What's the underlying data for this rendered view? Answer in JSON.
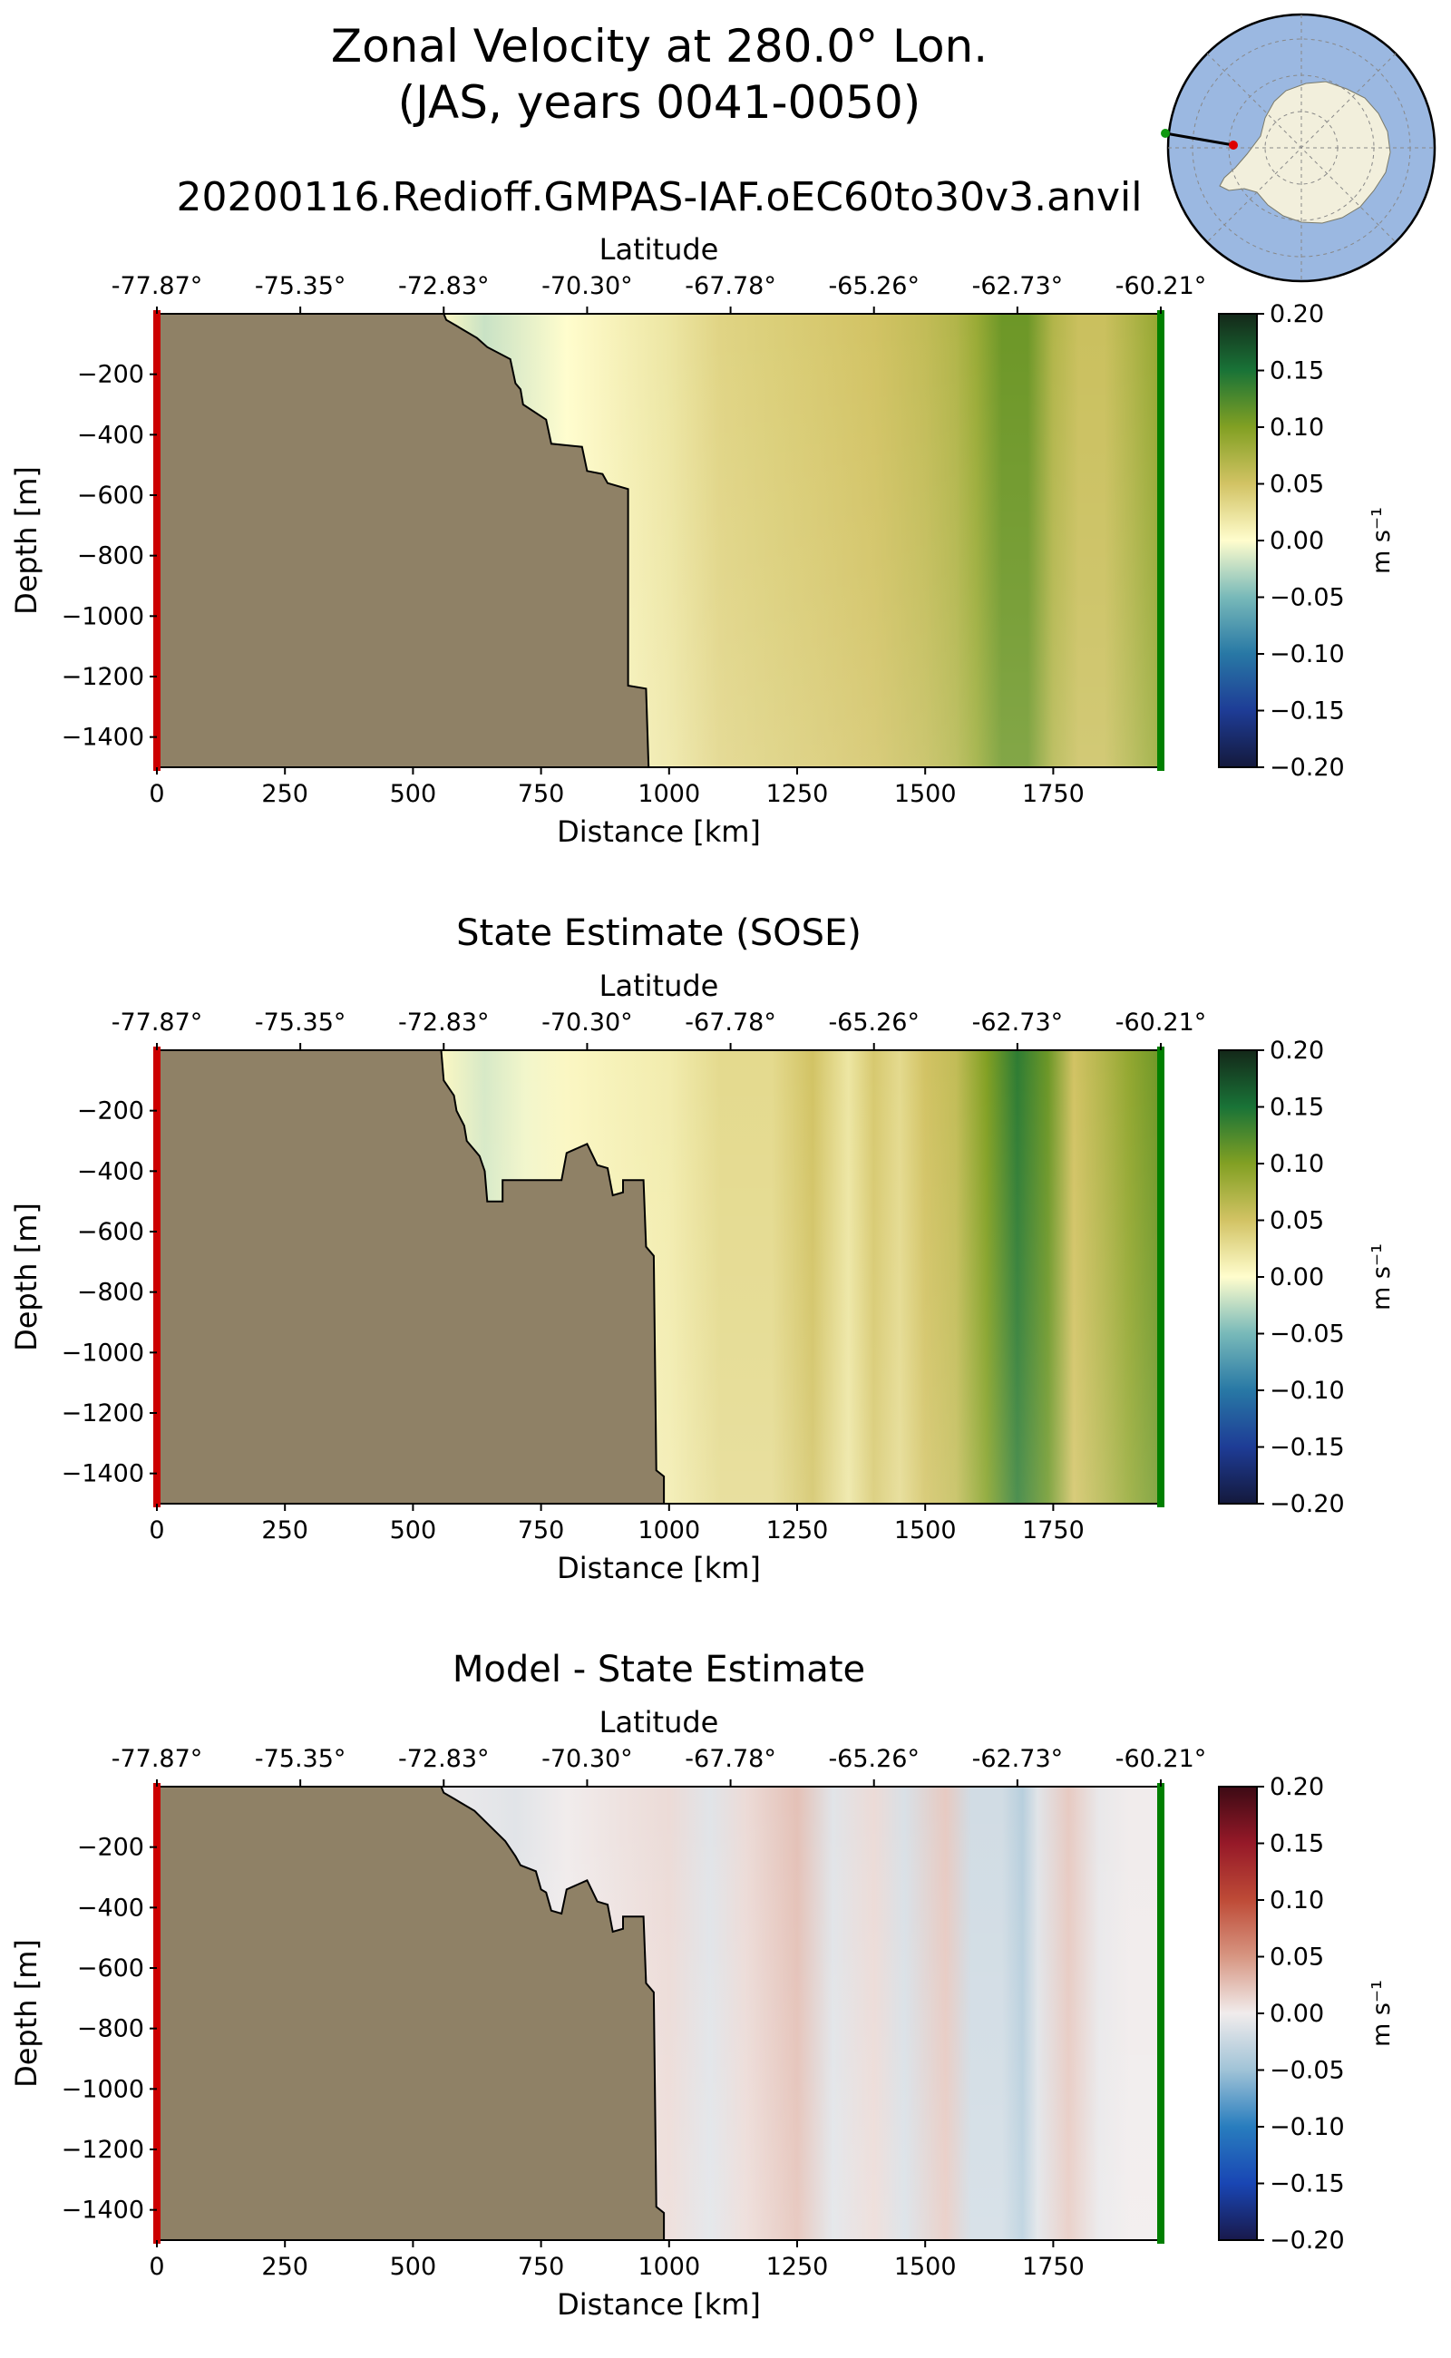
{
  "figure": {
    "title_line1": "Zonal Velocity at 280.0° Lon.",
    "title_line2": "(JAS, years 0041-0050)",
    "subtitle": "20200116.Redioff.GMPAS-IAF.oEC60to30v3.anvil"
  },
  "colors": {
    "land": "#8f8166",
    "start_marker": "#cc0000",
    "end_marker": "#007f00",
    "inset_ocean": "#9bb8e1",
    "inset_land": "#f2efdc"
  },
  "inset_map": {
    "name": "Antarctica polar stereographic inset",
    "transect": {
      "start_color": "#dd0000",
      "end_color": "#119911"
    }
  },
  "chart_data": [
    {
      "type": "heatmap",
      "title": "",
      "xlabel": "Distance [km]",
      "ylabel": "Depth [m]",
      "x2label": "Latitude",
      "xlim": [
        0,
        1960
      ],
      "ylim": [
        -1500,
        0
      ],
      "xticks": [
        0,
        250,
        500,
        750,
        1000,
        1250,
        1500,
        1750
      ],
      "yticks": [
        -200,
        -400,
        -600,
        -800,
        -1000,
        -1200,
        -1400
      ],
      "lat_ticks": [
        "-77.87°",
        "-75.35°",
        "-72.83°",
        "-70.30°",
        "-67.78°",
        "-65.26°",
        "-62.73°",
        "-60.21°"
      ],
      "colorbar": {
        "label": "m s⁻¹",
        "ticks": [
          "0.20",
          "0.15",
          "0.10",
          "0.05",
          "0.00",
          "−0.05",
          "−0.10",
          "−0.15",
          "−0.20"
        ],
        "range": [
          -0.2,
          0.2
        ],
        "colormap": "delta"
      },
      "bathymetry": [
        [
          0,
          0
        ],
        [
          560,
          0
        ],
        [
          565,
          -20
        ],
        [
          585,
          -40
        ],
        [
          625,
          -80
        ],
        [
          645,
          -110
        ],
        [
          690,
          -150
        ],
        [
          700,
          -230
        ],
        [
          710,
          -250
        ],
        [
          715,
          -300
        ],
        [
          760,
          -350
        ],
        [
          770,
          -430
        ],
        [
          830,
          -440
        ],
        [
          840,
          -520
        ],
        [
          870,
          -530
        ],
        [
          880,
          -560
        ],
        [
          920,
          -580
        ],
        [
          920,
          -1230
        ],
        [
          955,
          -1240
        ],
        [
          960,
          -1500
        ]
      ],
      "field": [
        [
          0,
          0
        ],
        [
          560,
          0.005
        ],
        [
          640,
          -0.02
        ],
        [
          720,
          -0.01
        ],
        [
          800,
          0.0
        ],
        [
          850,
          0.005
        ],
        [
          900,
          0.01
        ],
        [
          1000,
          0.02
        ],
        [
          1100,
          0.035
        ],
        [
          1200,
          0.04
        ],
        [
          1300,
          0.045
        ],
        [
          1400,
          0.05
        ],
        [
          1500,
          0.06
        ],
        [
          1560,
          0.07
        ],
        [
          1600,
          0.085
        ],
        [
          1650,
          0.11
        ],
        [
          1700,
          0.11
        ],
        [
          1750,
          0.07
        ],
        [
          1800,
          0.055
        ],
        [
          1850,
          0.055
        ],
        [
          1900,
          0.07
        ],
        [
          1960,
          0.09
        ]
      ]
    },
    {
      "type": "heatmap",
      "title": "State Estimate (SOSE)",
      "xlabel": "Distance [km]",
      "ylabel": "Depth [m]",
      "x2label": "Latitude",
      "xlim": [
        0,
        1960
      ],
      "ylim": [
        -1500,
        0
      ],
      "xticks": [
        0,
        250,
        500,
        750,
        1000,
        1250,
        1500,
        1750
      ],
      "yticks": [
        -200,
        -400,
        -600,
        -800,
        -1000,
        -1200,
        -1400
      ],
      "lat_ticks": [
        "-77.87°",
        "-75.35°",
        "-72.83°",
        "-70.30°",
        "-67.78°",
        "-65.26°",
        "-62.73°",
        "-60.21°"
      ],
      "colorbar": {
        "label": "m s⁻¹",
        "ticks": [
          "0.20",
          "0.15",
          "0.10",
          "0.05",
          "0.00",
          "−0.05",
          "−0.10",
          "−0.15",
          "−0.20"
        ],
        "range": [
          -0.2,
          0.2
        ],
        "colormap": "delta"
      },
      "bathymetry": [
        [
          0,
          0
        ],
        [
          555,
          0
        ],
        [
          560,
          -100
        ],
        [
          580,
          -150
        ],
        [
          585,
          -200
        ],
        [
          600,
          -250
        ],
        [
          605,
          -300
        ],
        [
          630,
          -350
        ],
        [
          640,
          -400
        ],
        [
          645,
          -500
        ],
        [
          675,
          -500
        ],
        [
          675,
          -430
        ],
        [
          790,
          -430
        ],
        [
          800,
          -340
        ],
        [
          840,
          -310
        ],
        [
          860,
          -380
        ],
        [
          880,
          -390
        ],
        [
          890,
          -480
        ],
        [
          910,
          -470
        ],
        [
          910,
          -430
        ],
        [
          950,
          -430
        ],
        [
          955,
          -650
        ],
        [
          970,
          -680
        ],
        [
          975,
          -1390
        ],
        [
          990,
          -1410
        ],
        [
          990,
          -1500
        ]
      ],
      "field": [
        [
          0,
          0
        ],
        [
          555,
          0.005
        ],
        [
          640,
          -0.015
        ],
        [
          720,
          -0.005
        ],
        [
          800,
          0.005
        ],
        [
          900,
          0.01
        ],
        [
          1000,
          0.015
        ],
        [
          1100,
          0.03
        ],
        [
          1200,
          0.03
        ],
        [
          1280,
          0.05
        ],
        [
          1350,
          0.02
        ],
        [
          1400,
          0.045
        ],
        [
          1450,
          0.03
        ],
        [
          1500,
          0.05
        ],
        [
          1560,
          0.06
        ],
        [
          1620,
          0.1
        ],
        [
          1680,
          0.14
        ],
        [
          1740,
          0.11
        ],
        [
          1790,
          0.05
        ],
        [
          1850,
          0.07
        ],
        [
          1900,
          0.09
        ],
        [
          1960,
          0.11
        ]
      ]
    },
    {
      "type": "heatmap",
      "title": "Model - State Estimate",
      "xlabel": "Distance [km]",
      "ylabel": "Depth [m]",
      "x2label": "Latitude",
      "xlim": [
        0,
        1960
      ],
      "ylim": [
        -1500,
        0
      ],
      "xticks": [
        0,
        250,
        500,
        750,
        1000,
        1250,
        1500,
        1750
      ],
      "yticks": [
        -200,
        -400,
        -600,
        -800,
        -1000,
        -1200,
        -1400
      ],
      "lat_ticks": [
        "-77.87°",
        "-75.35°",
        "-72.83°",
        "-70.30°",
        "-67.78°",
        "-65.26°",
        "-62.73°",
        "-60.21°"
      ],
      "colorbar": {
        "label": "m s⁻¹",
        "ticks": [
          "0.20",
          "0.15",
          "0.10",
          "0.05",
          "0.00",
          "−0.05",
          "−0.10",
          "−0.15",
          "−0.20"
        ],
        "range": [
          -0.2,
          0.2
        ],
        "colormap": "balance"
      },
      "bathymetry": [
        [
          0,
          0
        ],
        [
          555,
          0
        ],
        [
          560,
          -20
        ],
        [
          580,
          -40
        ],
        [
          620,
          -80
        ],
        [
          650,
          -130
        ],
        [
          680,
          -180
        ],
        [
          700,
          -230
        ],
        [
          710,
          -260
        ],
        [
          740,
          -280
        ],
        [
          750,
          -340
        ],
        [
          760,
          -350
        ],
        [
          770,
          -410
        ],
        [
          790,
          -420
        ],
        [
          800,
          -340
        ],
        [
          840,
          -310
        ],
        [
          860,
          -380
        ],
        [
          880,
          -390
        ],
        [
          890,
          -480
        ],
        [
          910,
          -470
        ],
        [
          910,
          -430
        ],
        [
          950,
          -430
        ],
        [
          955,
          -650
        ],
        [
          970,
          -680
        ],
        [
          975,
          -1390
        ],
        [
          990,
          -1410
        ],
        [
          990,
          -1500
        ]
      ],
      "field": [
        [
          0,
          0
        ],
        [
          600,
          -0.005
        ],
        [
          700,
          -0.01
        ],
        [
          800,
          0.0
        ],
        [
          900,
          0.005
        ],
        [
          1000,
          0.01
        ],
        [
          1080,
          -0.01
        ],
        [
          1150,
          0.01
        ],
        [
          1250,
          0.025
        ],
        [
          1320,
          -0.01
        ],
        [
          1400,
          0.01
        ],
        [
          1460,
          -0.015
        ],
        [
          1540,
          0.02
        ],
        [
          1590,
          -0.02
        ],
        [
          1650,
          -0.02
        ],
        [
          1690,
          -0.035
        ],
        [
          1720,
          -0.01
        ],
        [
          1780,
          0.02
        ],
        [
          1840,
          -0.005
        ],
        [
          1900,
          0.0
        ],
        [
          1960,
          0.0
        ]
      ]
    }
  ]
}
